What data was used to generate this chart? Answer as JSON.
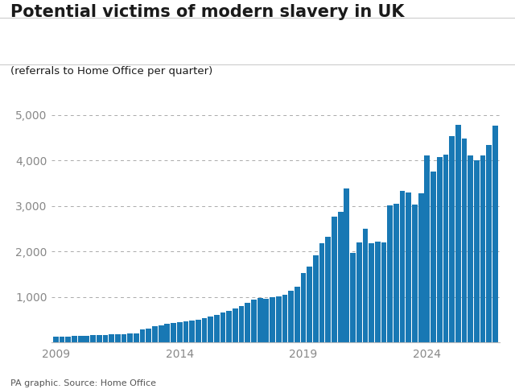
{
  "title": "Potential victims of modern slavery in UK",
  "subtitle": "(referrals to Home Office per quarter)",
  "caption": "PA graphic. Source: Home Office",
  "bar_color": "#1878b4",
  "background_color": "#ffffff",
  "grid_color": "#aaaaaa",
  "text_color": "#1a1a1a",
  "ylim": [
    0,
    5300
  ],
  "yticks": [
    1000,
    2000,
    3000,
    4000,
    5000
  ],
  "ytick_labels": [
    "1,000",
    "2,000",
    "3,000",
    "4,000",
    "5,000"
  ],
  "xtick_labels": [
    "2009",
    "2014",
    "2019",
    "2024"
  ],
  "xtick_positions": [
    0,
    20,
    40,
    60
  ],
  "values": [
    120,
    130,
    125,
    140,
    145,
    150,
    155,
    160,
    165,
    170,
    175,
    185,
    190,
    200,
    280,
    310,
    360,
    380,
    410,
    430,
    445,
    460,
    475,
    495,
    525,
    565,
    605,
    650,
    690,
    740,
    800,
    870,
    940,
    970,
    960,
    990,
    1010,
    1040,
    1140,
    1230,
    1530,
    1670,
    1920,
    2180,
    2320,
    2760,
    2870,
    3380,
    1960,
    2200,
    2490,
    2180,
    2220,
    2190,
    3010,
    3050,
    3330,
    3300,
    3030,
    3280,
    4110,
    3760,
    4080,
    4120,
    4530,
    4780,
    4470,
    4110,
    4000,
    4110,
    4340,
    4758
  ]
}
